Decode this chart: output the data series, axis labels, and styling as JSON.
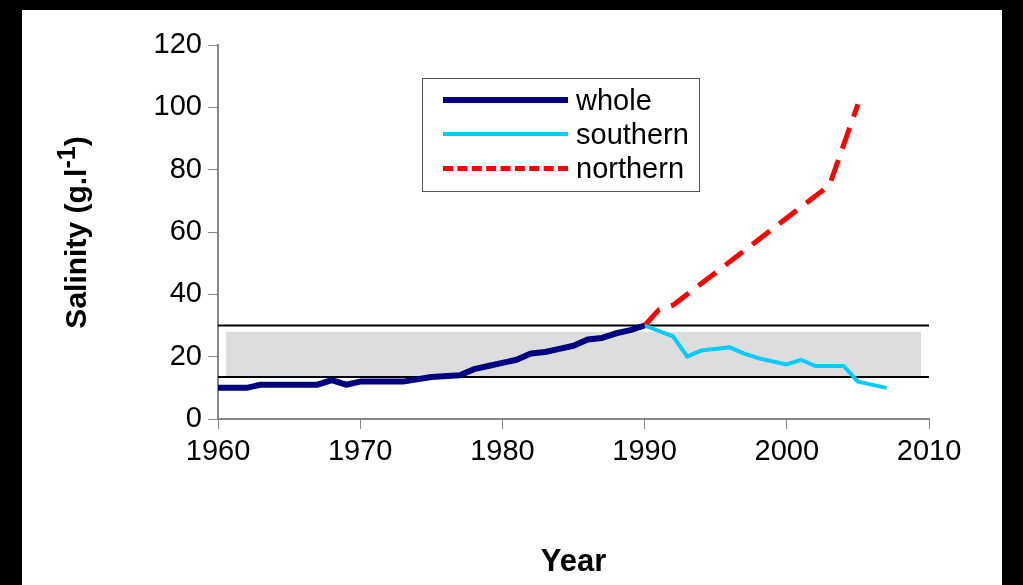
{
  "chart_data": {
    "type": "line",
    "xlabel": "Year",
    "ylabel": "Salinity (g.l$^{-1}$)",
    "xlim": [
      1960,
      2010
    ],
    "xticks": [
      1960,
      1970,
      1980,
      1990,
      2000,
      2010
    ],
    "ylim": [
      0,
      120
    ],
    "yticks": [
      0,
      20,
      40,
      60,
      80,
      100,
      120
    ],
    "grid": false,
    "legend": "top",
    "marker": "none",
    "series": [
      {
        "name": "whole",
        "color": "#000080",
        "line_style": "solid",
        "x": [
          1960,
          1962,
          1963,
          1967,
          1968,
          1969,
          1970,
          1973,
          1975,
          1977,
          1978,
          1979,
          1980,
          1981,
          1982,
          1983,
          1984,
          1985,
          1986,
          1987,
          1988,
          1989,
          1990
        ],
        "values": [
          10,
          10,
          11,
          11,
          12.5,
          11,
          12,
          12,
          13.5,
          14,
          16,
          17,
          18,
          19,
          21,
          21.5,
          22.5,
          23.5,
          25.5,
          26,
          27.5,
          28.5,
          30
        ]
      },
      {
        "name": "southern",
        "color": "#00ccff",
        "line_style": "solid",
        "x": [
          1990,
          1992,
          1993,
          1994,
          1996,
          1997,
          1998,
          2000,
          2001,
          2002,
          2004,
          2005,
          2007
        ],
        "values": [
          30,
          26.5,
          20,
          22,
          23,
          21,
          19.5,
          17.5,
          19,
          17,
          17,
          12,
          10
        ]
      },
      {
        "name": "northern",
        "color": "#ff0000",
        "line_style": "dashed",
        "x": [
          1990,
          1991,
          1992,
          1997,
          2003,
          2005
        ],
        "values": [
          30,
          35,
          36.5,
          54,
          75,
          101
        ]
      }
    ],
    "ref_lines": [
      {
        "axis": "y",
        "value": 30,
        "color": "#000000"
      },
      {
        "axis": "y",
        "value": 13.5,
        "color": "#000000"
      }
    ],
    "bands": [
      {
        "axis": "y",
        "from": 13.5,
        "to": 28,
        "color": "#dddddd"
      }
    ]
  }
}
